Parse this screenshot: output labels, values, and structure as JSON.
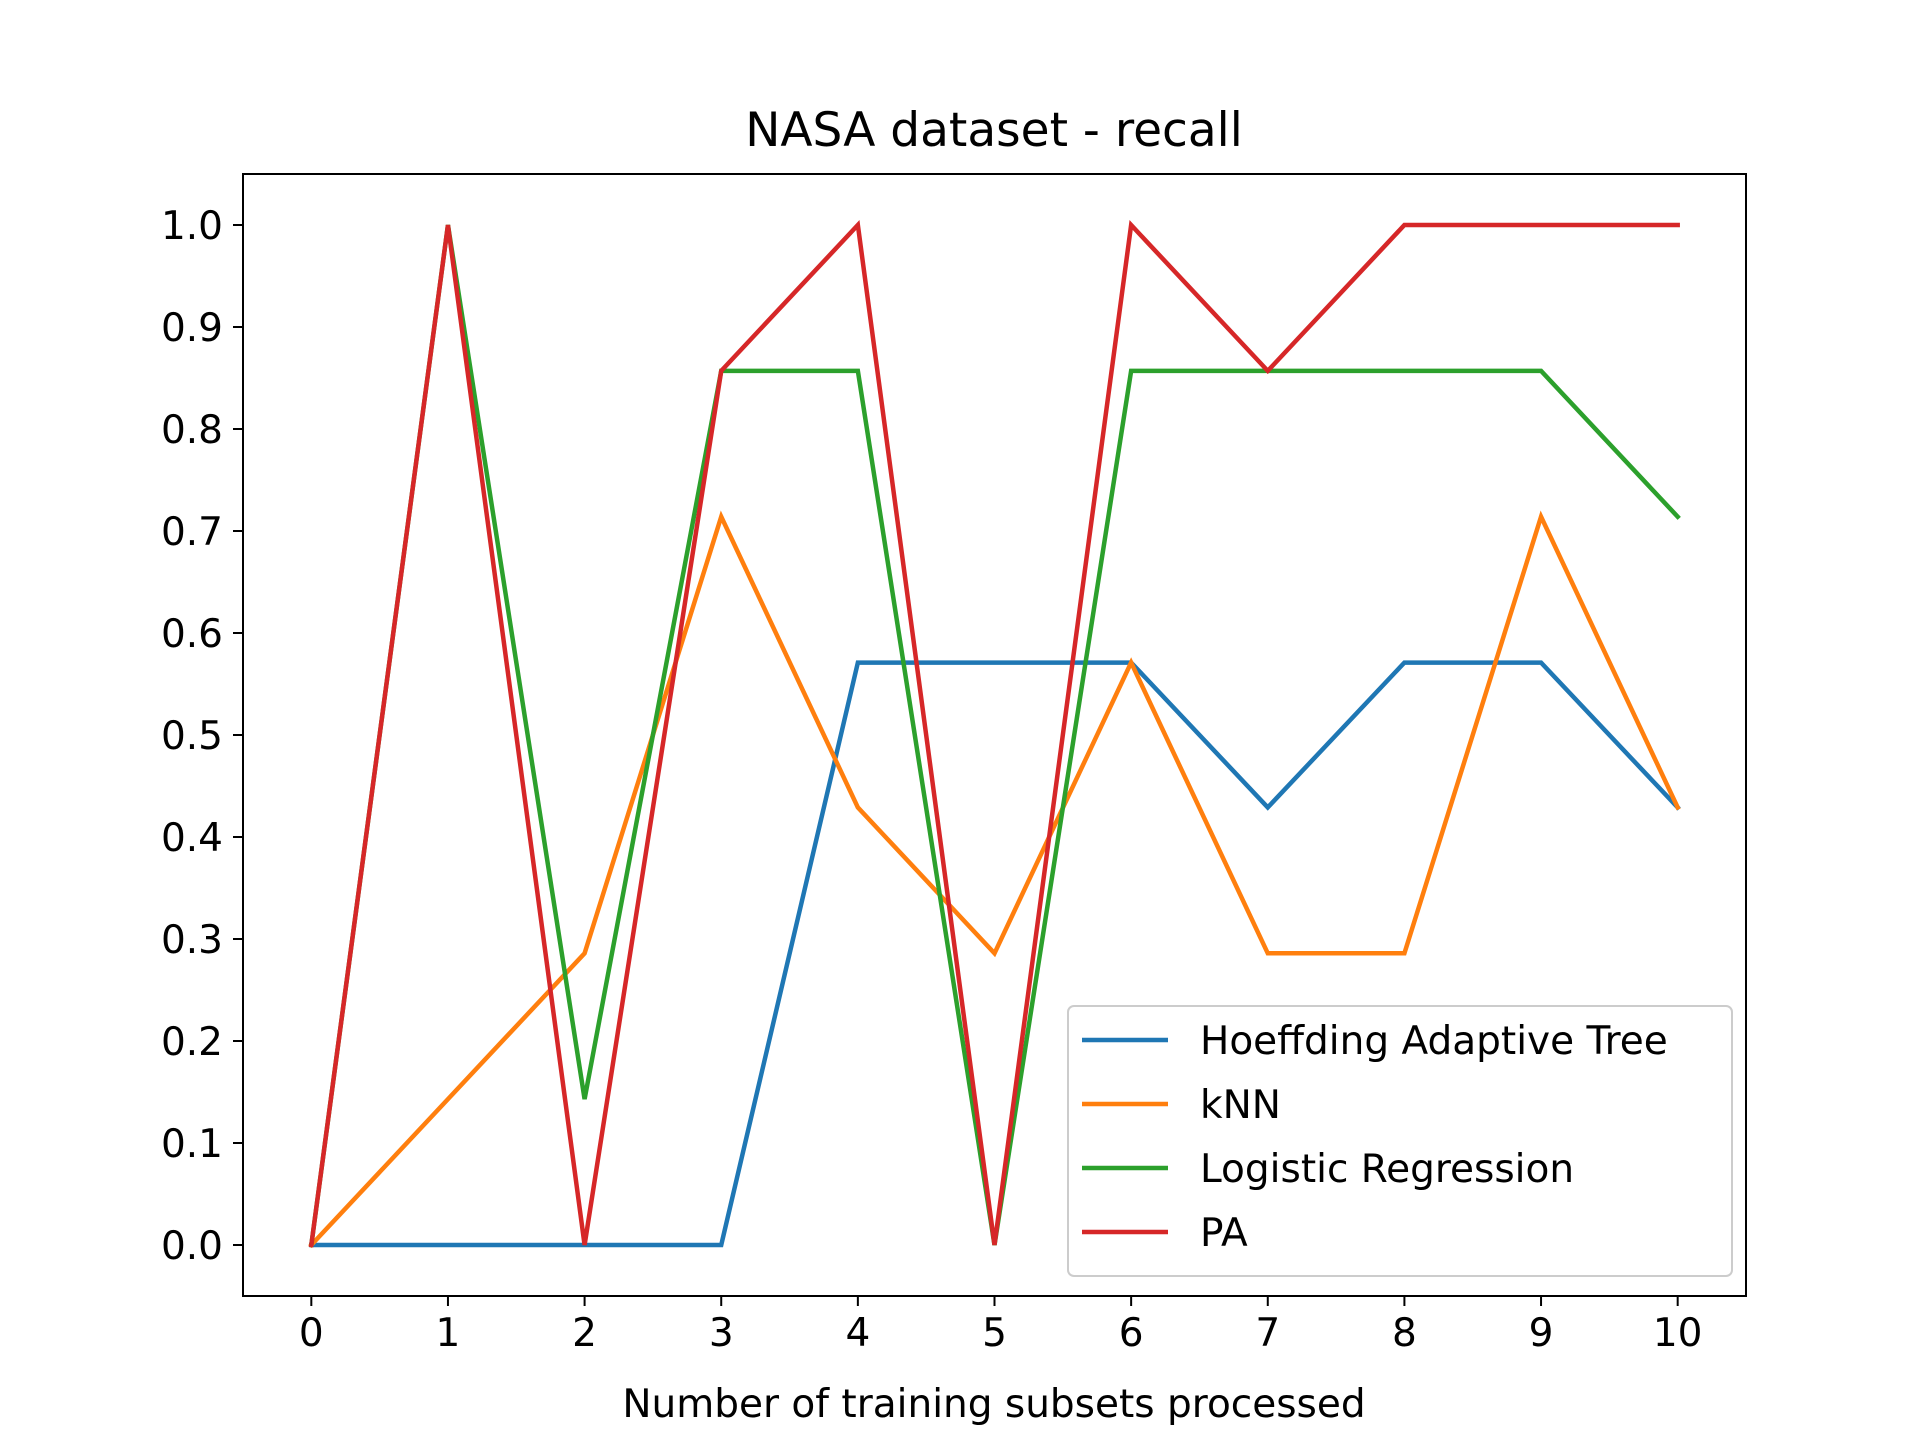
{
  "chart_data": {
    "type": "line",
    "title": "NASA dataset - recall",
    "xlabel": "Number of training subsets processed",
    "ylabel": "",
    "x": [
      0,
      1,
      2,
      3,
      4,
      5,
      6,
      7,
      8,
      9,
      10
    ],
    "xticks": [
      "0",
      "1",
      "2",
      "3",
      "4",
      "5",
      "6",
      "7",
      "8",
      "9",
      "10"
    ],
    "yticks": [
      "0.0",
      "0.1",
      "0.2",
      "0.3",
      "0.4",
      "0.5",
      "0.6",
      "0.7",
      "0.8",
      "0.9",
      "1.0"
    ],
    "xlim": [
      -0.5,
      10.5
    ],
    "ylim": [
      -0.05,
      1.05
    ],
    "grid": false,
    "legend_position": "lower-right",
    "series": [
      {
        "name": "Hoeffding Adaptive Tree",
        "color": "#1f77b4",
        "values": [
          0.0,
          0.0,
          0.0,
          0.0,
          0.571,
          0.571,
          0.571,
          0.429,
          0.571,
          0.571,
          0.429
        ]
      },
      {
        "name": "kNN",
        "color": "#ff7f0e",
        "values": [
          0.0,
          0.143,
          0.286,
          0.714,
          0.429,
          0.286,
          0.571,
          0.286,
          0.286,
          0.714,
          0.429
        ]
      },
      {
        "name": "Logistic Regression",
        "color": "#2ca02c",
        "values": [
          0.0,
          1.0,
          0.143,
          0.857,
          0.857,
          0.0,
          0.857,
          0.857,
          0.857,
          0.857,
          0.714
        ]
      },
      {
        "name": "PA",
        "color": "#d62728",
        "values": [
          0.0,
          1.0,
          0.0,
          0.857,
          1.0,
          0.0,
          1.0,
          0.857,
          1.0,
          1.0,
          1.0
        ]
      }
    ]
  }
}
